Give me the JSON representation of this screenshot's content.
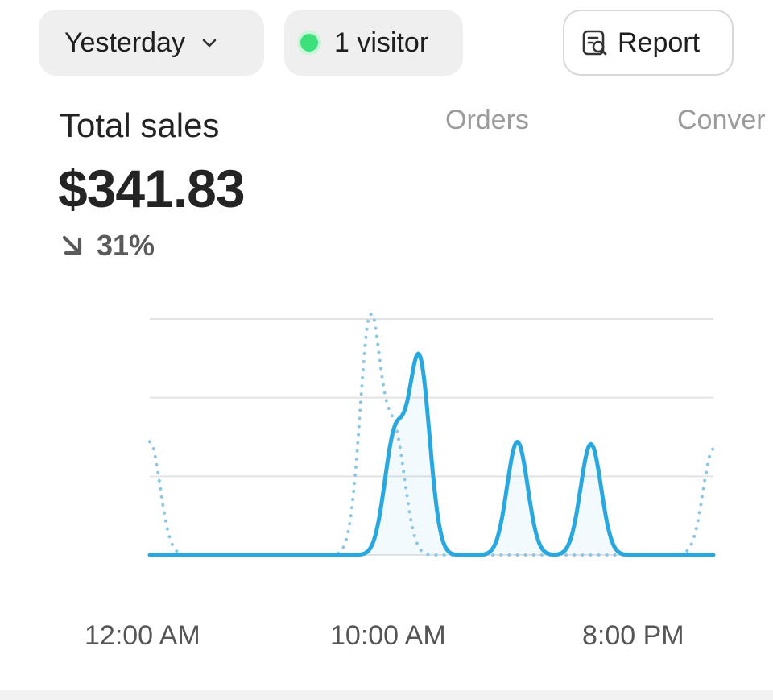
{
  "header": {
    "range_label": "Yesterday",
    "visitors_label": "1 visitor",
    "report_label": "Report"
  },
  "metrics": {
    "total_sales": {
      "label": "Total sales",
      "value": "$341.83",
      "change": "31%",
      "change_direction": "down"
    },
    "orders": {
      "label": "Orders"
    },
    "conversion": {
      "label": "Conver"
    }
  },
  "colors": {
    "accent": "#29a8e0",
    "comparison": "#8cc7e6",
    "live_dot": "#3ee07c",
    "gridline": "#e3e3e3"
  },
  "chart_data": {
    "type": "line",
    "x_tick_labels": [
      "12:00 AM",
      "10:00 AM",
      "8:00 PM"
    ],
    "x_range": [
      0,
      23
    ],
    "series": [
      {
        "style": "solid",
        "values": [
          0,
          0,
          0,
          0,
          0,
          0,
          0,
          0,
          0,
          0,
          0.5,
          0.82,
          0,
          0,
          0,
          0.48,
          0,
          0,
          0.47,
          0,
          0,
          0,
          0,
          0
        ]
      },
      {
        "style": "dotted",
        "values": [
          0.48,
          0,
          0,
          0,
          0,
          0,
          0,
          0,
          0,
          1.0,
          0.5,
          0,
          0,
          0,
          0,
          0,
          0,
          0,
          0,
          0,
          0,
          0,
          0,
          0.45
        ]
      }
    ],
    "y_range": [
      0,
      1
    ],
    "grid": true
  }
}
